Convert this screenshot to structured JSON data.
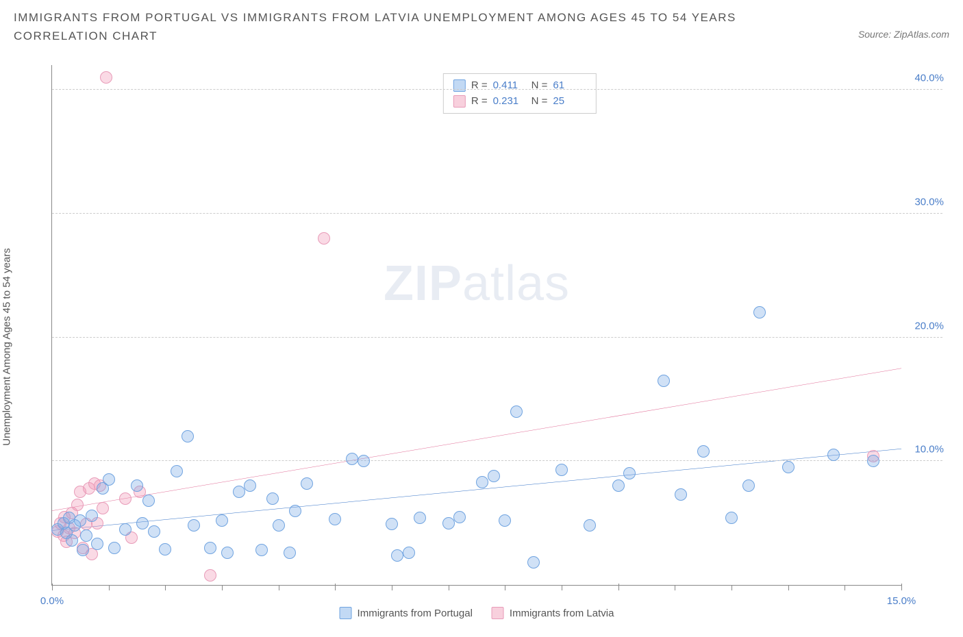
{
  "title": "IMMIGRANTS FROM PORTUGAL VS IMMIGRANTS FROM LATVIA UNEMPLOYMENT AMONG AGES 45 TO 54 YEARS CORRELATION CHART",
  "source": "Source: ZipAtlas.com",
  "y_label": "Unemployment Among Ages 45 to 54 years",
  "watermark_bold": "ZIP",
  "watermark_light": "atlas",
  "chart": {
    "type": "scatter",
    "x_domain": [
      0,
      15
    ],
    "y_domain": [
      0,
      42
    ],
    "x_ticks": [
      0,
      5,
      10,
      15
    ],
    "x_tick_labels": [
      "0.0%",
      "",
      "",
      "15.0%"
    ],
    "y_gridlines": [
      10,
      20,
      30,
      40
    ],
    "y_tick_labels": [
      "10.0%",
      "20.0%",
      "30.0%",
      "40.0%"
    ],
    "minor_x_ticks": [
      1,
      2,
      3,
      4,
      6,
      7,
      8,
      9,
      11,
      12,
      13,
      14
    ],
    "background_color": "#ffffff",
    "grid_color": "#cccccc",
    "axis_color": "#888888",
    "tick_label_color": "#4a7ec9",
    "marker_radius": 9,
    "series": {
      "portugal": {
        "label": "Immigrants from Portugal",
        "fill": "rgba(120,170,230,0.35)",
        "stroke": "#6fa3e0",
        "R": "0.411",
        "N": "61",
        "trend": {
          "x1": 0,
          "y1": 4.4,
          "x2": 15,
          "y2": 11.0,
          "color": "#2f6fc6",
          "width": 2
        },
        "points": [
          [
            0.1,
            4.5
          ],
          [
            0.2,
            5.0
          ],
          [
            0.25,
            4.2
          ],
          [
            0.3,
            5.4
          ],
          [
            0.35,
            3.6
          ],
          [
            0.4,
            4.8
          ],
          [
            0.5,
            5.2
          ],
          [
            0.55,
            2.8
          ],
          [
            0.6,
            4.0
          ],
          [
            0.7,
            5.6
          ],
          [
            0.8,
            3.3
          ],
          [
            0.9,
            7.8
          ],
          [
            1.0,
            8.5
          ],
          [
            1.1,
            3.0
          ],
          [
            1.3,
            4.5
          ],
          [
            1.5,
            8.0
          ],
          [
            1.6,
            5.0
          ],
          [
            1.7,
            6.8
          ],
          [
            1.8,
            4.3
          ],
          [
            2.0,
            2.9
          ],
          [
            2.2,
            9.2
          ],
          [
            2.4,
            12.0
          ],
          [
            2.5,
            4.8
          ],
          [
            2.8,
            3.0
          ],
          [
            3.0,
            5.2
          ],
          [
            3.1,
            2.6
          ],
          [
            3.3,
            7.5
          ],
          [
            3.5,
            8.0
          ],
          [
            3.7,
            2.8
          ],
          [
            3.9,
            7.0
          ],
          [
            4.0,
            4.8
          ],
          [
            4.2,
            2.6
          ],
          [
            4.3,
            6.0
          ],
          [
            4.5,
            8.2
          ],
          [
            5.0,
            5.3
          ],
          [
            5.3,
            10.2
          ],
          [
            5.5,
            10.0
          ],
          [
            6.0,
            4.9
          ],
          [
            6.1,
            2.4
          ],
          [
            6.3,
            2.6
          ],
          [
            6.5,
            5.4
          ],
          [
            7.0,
            5.0
          ],
          [
            7.2,
            5.5
          ],
          [
            7.6,
            8.3
          ],
          [
            7.8,
            8.8
          ],
          [
            8.0,
            5.2
          ],
          [
            8.2,
            14.0
          ],
          [
            8.5,
            1.8
          ],
          [
            9.0,
            9.3
          ],
          [
            9.5,
            4.8
          ],
          [
            10.0,
            8.0
          ],
          [
            10.2,
            9.0
          ],
          [
            10.8,
            16.5
          ],
          [
            11.1,
            7.3
          ],
          [
            11.5,
            10.8
          ],
          [
            12.0,
            5.4
          ],
          [
            12.3,
            8.0
          ],
          [
            12.5,
            22.0
          ],
          [
            13.0,
            9.5
          ],
          [
            13.8,
            10.5
          ],
          [
            14.5,
            10.0
          ]
        ]
      },
      "latvia": {
        "label": "Immigrants from Latvia",
        "fill": "rgba(240,150,180,0.35)",
        "stroke": "#e89bb8",
        "R": "0.231",
        "N": "25",
        "trend": {
          "x1": 0,
          "y1": 6.0,
          "x2": 15,
          "y2": 17.5,
          "color": "#e06a94",
          "width": 2
        },
        "points": [
          [
            0.1,
            4.3
          ],
          [
            0.15,
            5.0
          ],
          [
            0.2,
            4.0
          ],
          [
            0.22,
            5.5
          ],
          [
            0.25,
            3.5
          ],
          [
            0.3,
            4.6
          ],
          [
            0.35,
            5.8
          ],
          [
            0.4,
            4.2
          ],
          [
            0.45,
            6.5
          ],
          [
            0.5,
            7.5
          ],
          [
            0.55,
            3.0
          ],
          [
            0.6,
            4.9
          ],
          [
            0.65,
            7.8
          ],
          [
            0.7,
            2.5
          ],
          [
            0.75,
            8.2
          ],
          [
            0.8,
            5.0
          ],
          [
            0.85,
            8.0
          ],
          [
            0.9,
            6.2
          ],
          [
            0.95,
            41.0
          ],
          [
            1.3,
            7.0
          ],
          [
            1.4,
            3.8
          ],
          [
            1.55,
            7.5
          ],
          [
            2.8,
            0.8
          ],
          [
            4.8,
            28.0
          ],
          [
            14.5,
            10.4
          ]
        ]
      }
    }
  },
  "legend_top": {
    "rows": [
      {
        "swatch": "blue",
        "r_label": "R =",
        "r_val": "0.411",
        "n_label": "N =",
        "n_val": " 61"
      },
      {
        "swatch": "pink",
        "r_label": "R =",
        "r_val": "0.231",
        "n_label": "N =",
        "n_val": " 25"
      }
    ]
  },
  "legend_bottom": [
    {
      "swatch": "blue",
      "label": "Immigrants from Portugal"
    },
    {
      "swatch": "pink",
      "label": "Immigrants from Latvia"
    }
  ]
}
